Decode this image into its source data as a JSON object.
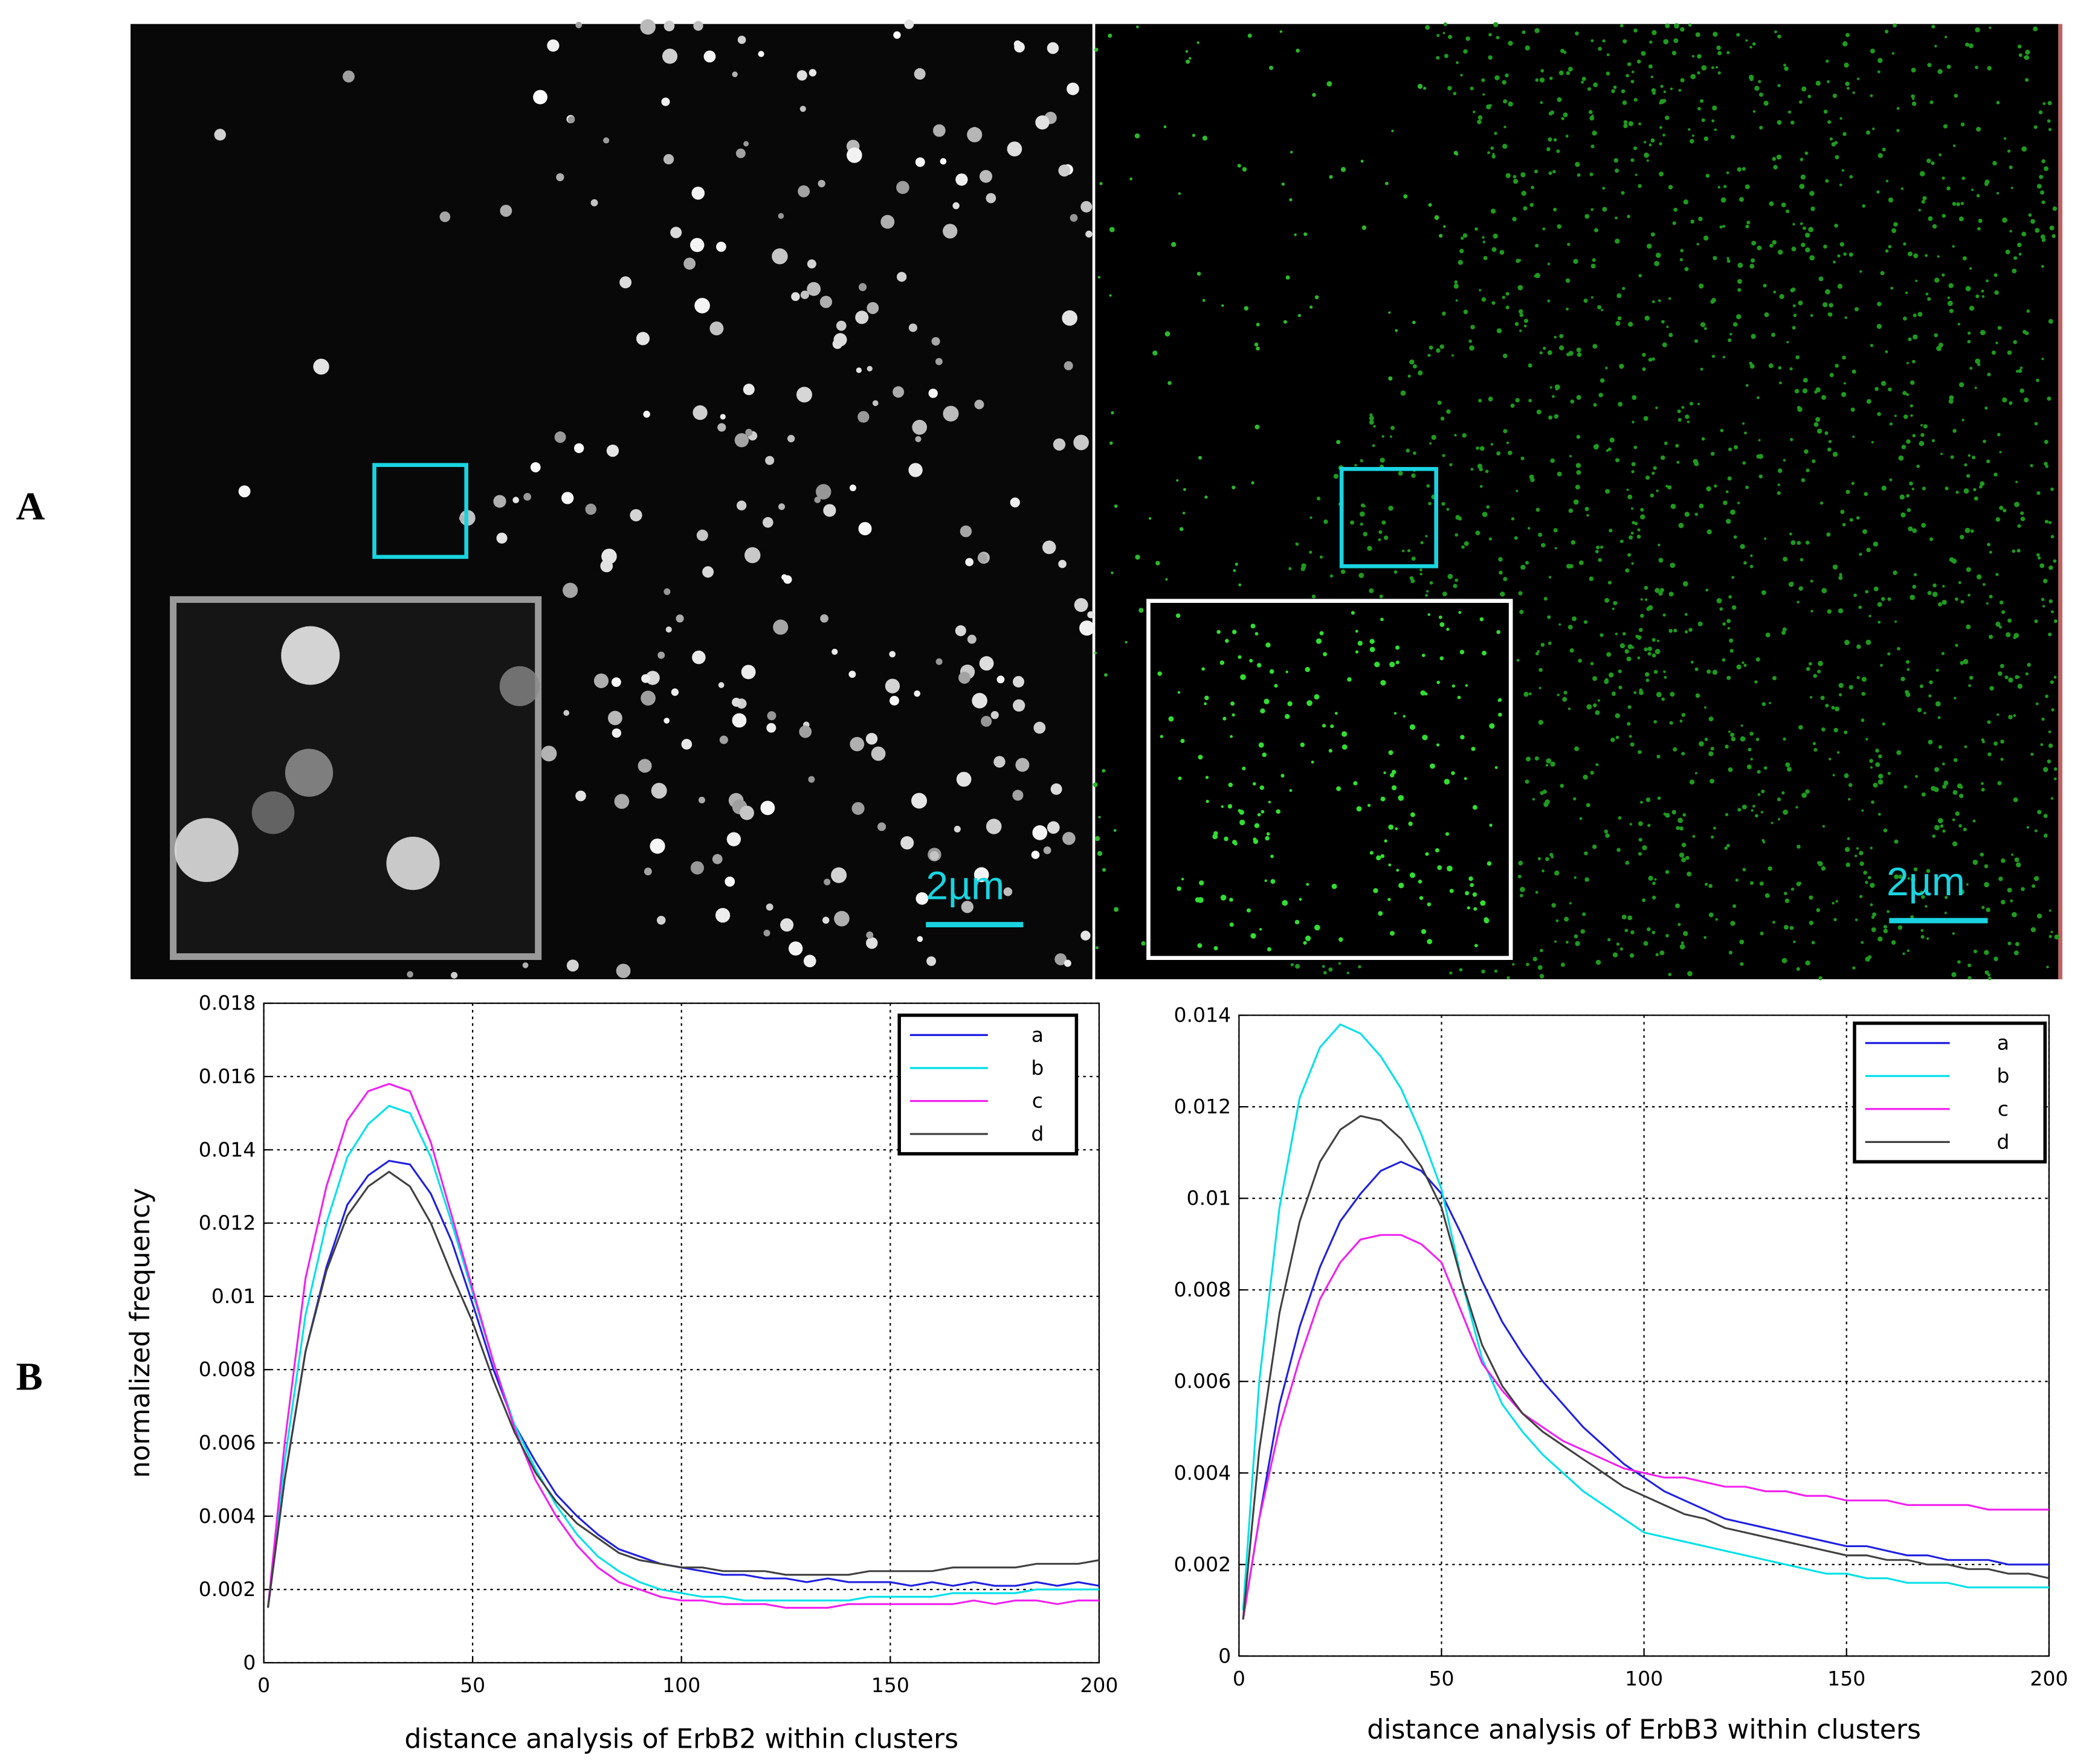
{
  "panel_labels": [
    "A",
    "B"
  ],
  "scale_bars": [
    "2µm",
    "2µm"
  ],
  "chart_data": [
    {
      "type": "line",
      "x_label": "distance analysis of ErbB2 within clusters",
      "y_label": "normalized frequency",
      "x": [
        1,
        5,
        10,
        15,
        20,
        25,
        30,
        35,
        40,
        45,
        50,
        55,
        60,
        65,
        70,
        75,
        80,
        85,
        90,
        95,
        100,
        105,
        110,
        115,
        120,
        125,
        130,
        135,
        140,
        145,
        150,
        155,
        160,
        165,
        170,
        175,
        180,
        185,
        190,
        195,
        200
      ],
      "xlim": [
        0,
        200
      ],
      "xticks": [
        0,
        50,
        100,
        150,
        200
      ],
      "ylim": [
        0,
        0.018
      ],
      "yticks": [
        0,
        0.002,
        0.004,
        0.006,
        0.008,
        0.01,
        0.012,
        0.014,
        0.016,
        0.018
      ],
      "grid": true,
      "legend": "top-right",
      "series": [
        {
          "name": "a",
          "color": "#2020e0",
          "values": [
            0.0015,
            0.005,
            0.0085,
            0.0108,
            0.0125,
            0.0133,
            0.0137,
            0.0136,
            0.0128,
            0.0115,
            0.0098,
            0.008,
            0.0065,
            0.0055,
            0.0046,
            0.004,
            0.0035,
            0.0031,
            0.0029,
            0.0027,
            0.0026,
            0.0025,
            0.0024,
            0.0024,
            0.0023,
            0.0023,
            0.0022,
            0.0023,
            0.0022,
            0.0022,
            0.0022,
            0.0021,
            0.0022,
            0.0021,
            0.0022,
            0.0021,
            0.0021,
            0.0022,
            0.0021,
            0.0022,
            0.0021
          ]
        },
        {
          "name": "b",
          "color": "#00e0e8",
          "values": [
            0.0015,
            0.0055,
            0.0095,
            0.012,
            0.0138,
            0.0147,
            0.0152,
            0.015,
            0.0138,
            0.012,
            0.0101,
            0.0082,
            0.0065,
            0.0053,
            0.0043,
            0.0035,
            0.0029,
            0.0025,
            0.0022,
            0.002,
            0.0019,
            0.0018,
            0.0018,
            0.0017,
            0.0017,
            0.0017,
            0.0017,
            0.0017,
            0.0017,
            0.0018,
            0.0018,
            0.0018,
            0.0018,
            0.0019,
            0.0019,
            0.0019,
            0.0019,
            0.002,
            0.002,
            0.002,
            0.002
          ]
        },
        {
          "name": "c",
          "color": "#f020f0",
          "values": [
            0.0015,
            0.006,
            0.0105,
            0.013,
            0.0148,
            0.0156,
            0.0158,
            0.0156,
            0.0142,
            0.0122,
            0.0102,
            0.0082,
            0.0064,
            0.005,
            0.004,
            0.0032,
            0.0026,
            0.0022,
            0.002,
            0.0018,
            0.0017,
            0.0017,
            0.0016,
            0.0016,
            0.0016,
            0.0015,
            0.0015,
            0.0015,
            0.0016,
            0.0016,
            0.0016,
            0.0016,
            0.0016,
            0.0016,
            0.0017,
            0.0016,
            0.0017,
            0.0017,
            0.0016,
            0.0017,
            0.0017
          ]
        },
        {
          "name": "d",
          "color": "#404040",
          "values": [
            0.0015,
            0.005,
            0.0085,
            0.0107,
            0.0122,
            0.013,
            0.0134,
            0.013,
            0.012,
            0.0106,
            0.0093,
            0.0077,
            0.0063,
            0.0052,
            0.0044,
            0.0038,
            0.0034,
            0.003,
            0.0028,
            0.0027,
            0.0026,
            0.0026,
            0.0025,
            0.0025,
            0.0025,
            0.0024,
            0.0024,
            0.0024,
            0.0024,
            0.0025,
            0.0025,
            0.0025,
            0.0025,
            0.0026,
            0.0026,
            0.0026,
            0.0026,
            0.0027,
            0.0027,
            0.0027,
            0.0028
          ]
        }
      ]
    },
    {
      "type": "line",
      "x_label": "distance analysis of ErbB3 within clusters",
      "x": [
        1,
        5,
        10,
        15,
        20,
        25,
        30,
        35,
        40,
        45,
        50,
        55,
        60,
        65,
        70,
        75,
        80,
        85,
        90,
        95,
        100,
        105,
        110,
        115,
        120,
        125,
        130,
        135,
        140,
        145,
        150,
        155,
        160,
        165,
        170,
        175,
        180,
        185,
        190,
        195,
        200
      ],
      "xlim": [
        0,
        200
      ],
      "xticks": [
        0,
        50,
        100,
        150,
        200
      ],
      "ylim": [
        0,
        0.014
      ],
      "yticks": [
        0,
        0.002,
        0.004,
        0.006,
        0.008,
        0.01,
        0.012,
        0.014
      ],
      "grid": true,
      "legend": "top-right",
      "series": [
        {
          "name": "a",
          "color": "#2020e0",
          "values": [
            0.0008,
            0.003,
            0.0055,
            0.0072,
            0.0085,
            0.0095,
            0.0101,
            0.0106,
            0.0108,
            0.0106,
            0.0101,
            0.0092,
            0.0082,
            0.0073,
            0.0066,
            0.006,
            0.0055,
            0.005,
            0.0046,
            0.0042,
            0.0039,
            0.0036,
            0.0034,
            0.0032,
            0.003,
            0.0029,
            0.0028,
            0.0027,
            0.0026,
            0.0025,
            0.0024,
            0.0024,
            0.0023,
            0.0022,
            0.0022,
            0.0021,
            0.0021,
            0.0021,
            0.002,
            0.002,
            0.002
          ]
        },
        {
          "name": "b",
          "color": "#00e0e8",
          "values": [
            0.001,
            0.006,
            0.0098,
            0.0122,
            0.0133,
            0.0138,
            0.0136,
            0.0131,
            0.0124,
            0.0114,
            0.0102,
            0.0082,
            0.0065,
            0.0055,
            0.0049,
            0.0044,
            0.004,
            0.0036,
            0.0033,
            0.003,
            0.0027,
            0.0026,
            0.0025,
            0.0024,
            0.0023,
            0.0022,
            0.0021,
            0.002,
            0.0019,
            0.0018,
            0.0018,
            0.0017,
            0.0017,
            0.0016,
            0.0016,
            0.0016,
            0.0015,
            0.0015,
            0.0015,
            0.0015,
            0.0015
          ]
        },
        {
          "name": "c",
          "color": "#f020f0",
          "values": [
            0.0008,
            0.003,
            0.005,
            0.0065,
            0.0078,
            0.0086,
            0.0091,
            0.0092,
            0.0092,
            0.009,
            0.0086,
            0.0075,
            0.0064,
            0.0058,
            0.0053,
            0.005,
            0.0047,
            0.0045,
            0.0043,
            0.0041,
            0.004,
            0.0039,
            0.0039,
            0.0038,
            0.0037,
            0.0037,
            0.0036,
            0.0036,
            0.0035,
            0.0035,
            0.0034,
            0.0034,
            0.0034,
            0.0033,
            0.0033,
            0.0033,
            0.0033,
            0.0032,
            0.0032,
            0.0032,
            0.0032
          ]
        },
        {
          "name": "d",
          "color": "#404040",
          "values": [
            0.0008,
            0.0045,
            0.0075,
            0.0095,
            0.0108,
            0.0115,
            0.0118,
            0.0117,
            0.0113,
            0.0107,
            0.0098,
            0.0082,
            0.0068,
            0.0059,
            0.0053,
            0.0049,
            0.0046,
            0.0043,
            0.004,
            0.0037,
            0.0035,
            0.0033,
            0.0031,
            0.003,
            0.0028,
            0.0027,
            0.0026,
            0.0025,
            0.0024,
            0.0023,
            0.0022,
            0.0022,
            0.0021,
            0.0021,
            0.002,
            0.002,
            0.0019,
            0.0019,
            0.0018,
            0.0018,
            0.0017
          ]
        }
      ]
    }
  ]
}
